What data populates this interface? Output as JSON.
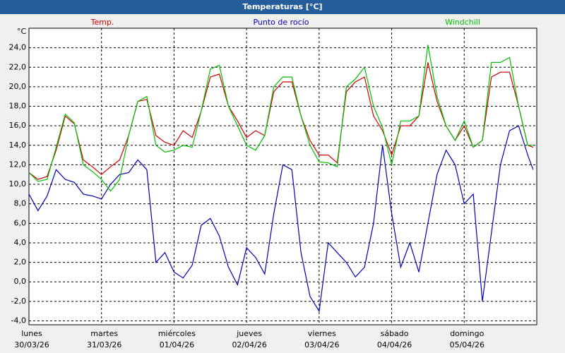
{
  "chart_data": {
    "type": "line",
    "title": "Temperaturas [°C]",
    "y_unit": "°C",
    "xlim": [
      0,
      7
    ],
    "ylim": [
      -4.4,
      26
    ],
    "xticks": [
      {
        "value": 0,
        "label": "lunes\n30/03/26"
      },
      {
        "value": 1,
        "label": "martes\n31/03/26"
      },
      {
        "value": 2,
        "label": "miércoles\n01/04/26"
      },
      {
        "value": 3,
        "label": "jueves\n02/04/26"
      },
      {
        "value": 4,
        "label": "viernes\n03/04/26"
      },
      {
        "value": 5,
        "label": "sábado\n04/04/26"
      },
      {
        "value": 6,
        "label": "domingo\n05/04/26"
      }
    ],
    "yticks": [
      {
        "value": -4,
        "label": "-4,0"
      },
      {
        "value": -2,
        "label": "-2,0"
      },
      {
        "value": 0,
        "label": "0,0"
      },
      {
        "value": 2,
        "label": "2,0"
      },
      {
        "value": 4,
        "label": "4,0"
      },
      {
        "value": 6,
        "label": "6,0"
      },
      {
        "value": 8,
        "label": "8,0"
      },
      {
        "value": 10,
        "label": "10,0"
      },
      {
        "value": 12,
        "label": "12,0"
      },
      {
        "value": 14,
        "label": "14,0"
      },
      {
        "value": 16,
        "label": "16,0"
      },
      {
        "value": 18,
        "label": "18,0"
      },
      {
        "value": 20,
        "label": "20,0"
      },
      {
        "value": 22,
        "label": "22,0"
      },
      {
        "value": 24,
        "label": "24,0"
      }
    ],
    "grid": true,
    "x": [
      0,
      0.125,
      0.25,
      0.375,
      0.5,
      0.625,
      0.75,
      0.875,
      1,
      1.125,
      1.25,
      1.375,
      1.5,
      1.625,
      1.75,
      1.875,
      2,
      2.125,
      2.25,
      2.375,
      2.5,
      2.625,
      2.75,
      2.875,
      3,
      3.125,
      3.25,
      3.375,
      3.5,
      3.625,
      3.75,
      3.875,
      4,
      4.125,
      4.25,
      4.375,
      4.5,
      4.625,
      4.75,
      4.875,
      5,
      5.125,
      5.25,
      5.375,
      5.5,
      5.625,
      5.75,
      5.875,
      6,
      6.125,
      6.25,
      6.375,
      6.5,
      6.625,
      6.75,
      6.875,
      6.95
    ],
    "series": [
      {
        "name": "Temp.",
        "color": "#d00000",
        "values": [
          11.2,
          10.5,
          10.8,
          13.5,
          17,
          16.2,
          12.5,
          11.8,
          11,
          11.8,
          12.5,
          15,
          18.5,
          18.7,
          15,
          14.3,
          14,
          15.5,
          14.8,
          17.5,
          21,
          21.3,
          18,
          16.5,
          14.8,
          15.5,
          15,
          19.5,
          20.5,
          20.5,
          17,
          14.5,
          13,
          13,
          12.2,
          19.5,
          20.5,
          21,
          17,
          15.5,
          13,
          16,
          16,
          17,
          22.5,
          18.5,
          16,
          14.5,
          16,
          13.8,
          14.5,
          21,
          21.5,
          21.5,
          18,
          14,
          13.8
        ]
      },
      {
        "name": "Punto de rocío",
        "color": "#0000b0",
        "values": [
          9,
          7.3,
          8.8,
          11.5,
          10.5,
          10.2,
          9,
          8.8,
          8.5,
          10,
          11,
          11.2,
          12.5,
          11.5,
          2,
          3,
          1,
          0.4,
          1.7,
          5.8,
          6.5,
          4.7,
          1.5,
          -0.3,
          3.5,
          2.5,
          0.8,
          7,
          12,
          11.5,
          3,
          -1.5,
          -3,
          4,
          3,
          2,
          0.5,
          1.5,
          6,
          14,
          7,
          1.5,
          4,
          1,
          6,
          11,
          13.5,
          12,
          8,
          9,
          -2,
          5,
          12,
          15.5,
          16,
          13,
          11.5
        ]
      },
      {
        "name": "Windchill",
        "color": "#00c000",
        "values": [
          11.2,
          10.3,
          10.5,
          13.8,
          17.2,
          16.3,
          12,
          11.3,
          10.5,
          9.3,
          10.5,
          15,
          18.5,
          19,
          14,
          13.3,
          13.5,
          14,
          13.8,
          17.5,
          21.8,
          22.2,
          18,
          16,
          14,
          13.5,
          15,
          20,
          21,
          21,
          17,
          14,
          12.3,
          12.2,
          11.8,
          20,
          20.8,
          22,
          18,
          15.8,
          12,
          16.5,
          16.5,
          17,
          24.3,
          19,
          16,
          14.5,
          16.5,
          13.8,
          14.5,
          22.5,
          22.5,
          23,
          18,
          14,
          14
        ]
      }
    ]
  }
}
